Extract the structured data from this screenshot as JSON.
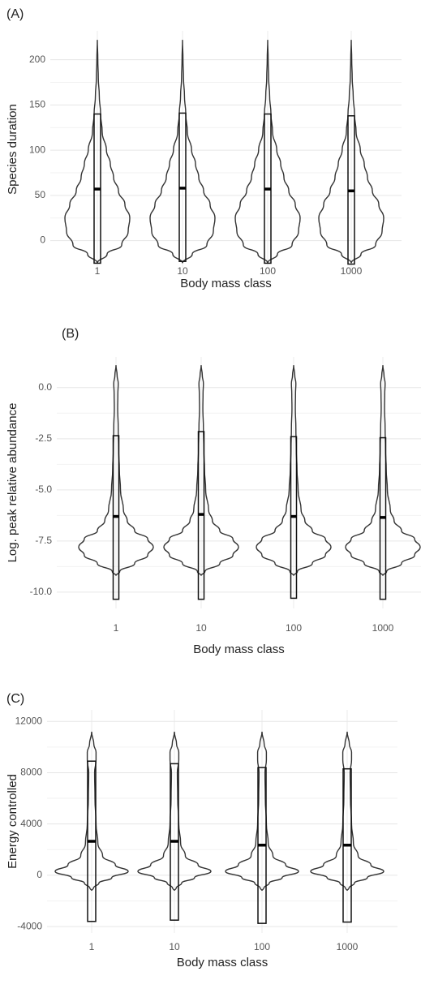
{
  "chart_data": [
    {
      "type": "violin",
      "title": "(A)",
      "ylabel": "Species duration",
      "xlabel": "Body mass class",
      "categories": [
        "1",
        "10",
        "100",
        "1000"
      ],
      "box_lower": [
        -25,
        -23,
        -25,
        -26
      ],
      "box_median": [
        57,
        58,
        57,
        55
      ],
      "box_upper": [
        140,
        141,
        140,
        138
      ],
      "violin_y": [
        -25,
        -15,
        -5,
        10,
        25,
        40,
        55,
        70,
        85,
        100,
        120,
        140,
        160,
        180,
        200,
        222
      ],
      "violin_width": [
        0,
        0.3,
        0.75,
        0.95,
        1.0,
        0.85,
        0.65,
        0.5,
        0.4,
        0.28,
        0.15,
        0.1,
        0.06,
        0.03,
        0.015,
        0
      ],
      "ylim": [
        -30,
        232
      ],
      "yticks": [
        0,
        50,
        100,
        150,
        200
      ],
      "grid": true,
      "color": "#333333"
    },
    {
      "type": "violin",
      "title": "(B)",
      "ylabel": "Log. peak relative abundance",
      "xlabel": "Body mass class",
      "categories": [
        "1",
        "10",
        "100",
        "1000"
      ],
      "box_lower": [
        -10.35,
        -10.35,
        -10.3,
        -10.35
      ],
      "box_median": [
        -6.3,
        -6.2,
        -6.3,
        -6.35
      ],
      "box_upper": [
        -2.35,
        -2.15,
        -2.4,
        -2.45
      ],
      "violin_y": [
        -9.2,
        -9.0,
        -8.6,
        -8.2,
        -7.8,
        -7.4,
        -7.0,
        -6.5,
        -6,
        -5,
        -4,
        -3,
        -2,
        -1,
        -0.3,
        0.2,
        0.6,
        1.1
      ],
      "violin_width": [
        0,
        0.1,
        0.5,
        0.85,
        1.0,
        0.85,
        0.5,
        0.3,
        0.2,
        0.12,
        0.09,
        0.07,
        0.06,
        0.045,
        0.05,
        0.06,
        0.03,
        0
      ],
      "ylim": [
        -10.8,
        1.5
      ],
      "yticks": [
        {
          "value": 0,
          "label": "0.0"
        },
        {
          "value": -2.5,
          "label": "-2.5"
        },
        {
          "value": -5,
          "label": "-5.0"
        },
        {
          "value": -7.5,
          "label": "-7.5"
        },
        {
          "value": -10,
          "label": "-10.0"
        }
      ],
      "grid": true,
      "color": "#333333"
    },
    {
      "type": "violin",
      "title": "(C)",
      "ylabel": "Energy controlled",
      "xlabel": "Body mass class",
      "categories": [
        "1",
        "10",
        "100",
        "1000"
      ],
      "box_lower": [
        -3600,
        -3500,
        -3750,
        -3650
      ],
      "box_median": [
        2650,
        2650,
        2350,
        2350
      ],
      "box_upper": [
        8900,
        8700,
        8400,
        8300
      ],
      "violin_y": [
        -1200,
        -1000,
        -600,
        -200,
        300,
        800,
        1500,
        2500,
        4000,
        6000,
        8000,
        9000,
        9600,
        10200,
        11200
      ],
      "violin_width": [
        0,
        0.05,
        0.2,
        0.55,
        1.0,
        0.65,
        0.3,
        0.17,
        0.12,
        0.09,
        0.08,
        0.12,
        0.12,
        0.06,
        0
      ],
      "ylim": [
        -4500,
        12900
      ],
      "yticks": [
        -4000,
        0,
        4000,
        8000,
        12000
      ],
      "grid": true,
      "color": "#333333"
    }
  ]
}
